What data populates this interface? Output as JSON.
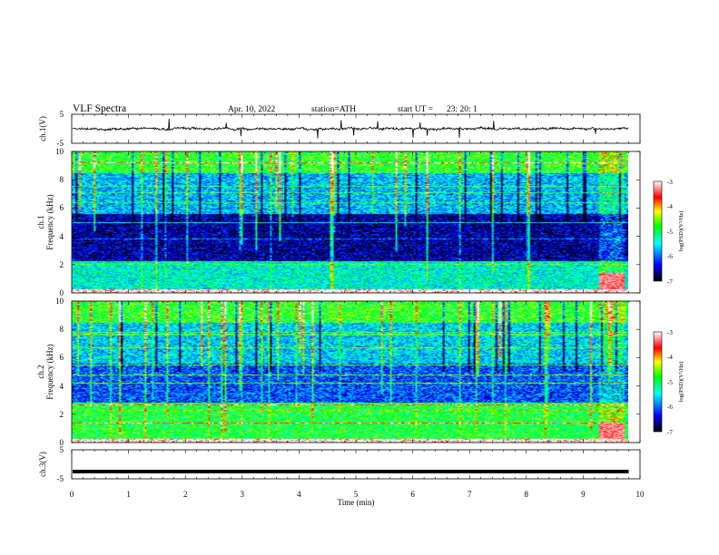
{
  "header": {
    "title": "VLF Spectra",
    "date": "Apr. 10, 2022",
    "station": "station=ATH",
    "start_label": "start UT =",
    "start_time": "23: 20: 1"
  },
  "chart_data": [
    {
      "type": "line",
      "name": "ch1-waveform",
      "ylabel": "ch.1(V)",
      "yticks": [
        "5",
        "-5"
      ],
      "ylim": [
        -5,
        5
      ],
      "xlim": [
        0,
        10
      ],
      "approx_level_v": 0.0,
      "approx_ripple_v": 1.0,
      "spike_max_v": 3.5
    },
    {
      "type": "heatmap",
      "name": "ch1-spectrogram",
      "ylabel_top": "ch.1",
      "ylabel_bottom": "Frequency (kHz)",
      "yticks": [
        "0",
        "2",
        "4",
        "6",
        "8",
        "10"
      ],
      "ylim": [
        0,
        10
      ],
      "xlim": [
        0,
        9.8
      ],
      "colorbar": {
        "label": "log(PSD)(V²/Hz)",
        "ticks": [
          "-3",
          "-4",
          "-5",
          "-6",
          "-7"
        ],
        "range": [
          -7,
          -3
        ],
        "colors": [
          "#000000",
          "#0000ff",
          "#00ffff",
          "#00ff00",
          "#ffff00",
          "#ff0000",
          "#ffffff"
        ]
      },
      "bands_khz": [
        {
          "from": 0.0,
          "to": 0.25,
          "level": -3.0
        },
        {
          "from": 0.25,
          "to": 2.2,
          "level": -5.4
        },
        {
          "from": 2.2,
          "to": 5.6,
          "level": -6.6
        },
        {
          "from": 5.6,
          "to": 8.5,
          "level": -5.7
        },
        {
          "from": 8.5,
          "to": 10.0,
          "level": -4.8
        }
      ],
      "burst_start_min": 9.3,
      "burst_end_min": 9.75
    },
    {
      "type": "heatmap",
      "name": "ch2-spectrogram",
      "ylabel_top": "ch.2",
      "ylabel_bottom": "Frequency (kHz)",
      "yticks": [
        "0",
        "2",
        "4",
        "6",
        "8",
        "10"
      ],
      "ylim": [
        0,
        10
      ],
      "xlim": [
        0,
        9.8
      ],
      "colorbar": {
        "label": "log(PSD)(V²/Hz)",
        "ticks": [
          "-3",
          "-4",
          "-5",
          "-6",
          "-7"
        ],
        "range": [
          -7,
          -3
        ],
        "colors": [
          "#000000",
          "#0000ff",
          "#00ffff",
          "#00ff00",
          "#ffff00",
          "#ff0000",
          "#ffffff"
        ]
      },
      "bands_khz": [
        {
          "from": 0.0,
          "to": 0.25,
          "level": -3.0
        },
        {
          "from": 0.25,
          "to": 2.8,
          "level": -4.9
        },
        {
          "from": 2.8,
          "to": 5.6,
          "level": -6.1
        },
        {
          "from": 5.6,
          "to": 8.5,
          "level": -5.6
        },
        {
          "from": 8.5,
          "to": 10.0,
          "level": -4.8
        }
      ],
      "burst_start_min": 9.3,
      "burst_end_min": 9.75
    },
    {
      "type": "line",
      "name": "ch3-waveform",
      "ylabel": "ch.3(V)",
      "yticks": [
        "5",
        "-5"
      ],
      "ylim": [
        -5,
        5
      ],
      "xlim": [
        0,
        10
      ],
      "approx_level_v": -2.5
    }
  ],
  "x_axis": {
    "label": "Time (min)",
    "ticks": [
      "0",
      "1",
      "2",
      "3",
      "4",
      "5",
      "6",
      "7",
      "8",
      "9",
      "10"
    ],
    "range": [
      0,
      10
    ]
  }
}
